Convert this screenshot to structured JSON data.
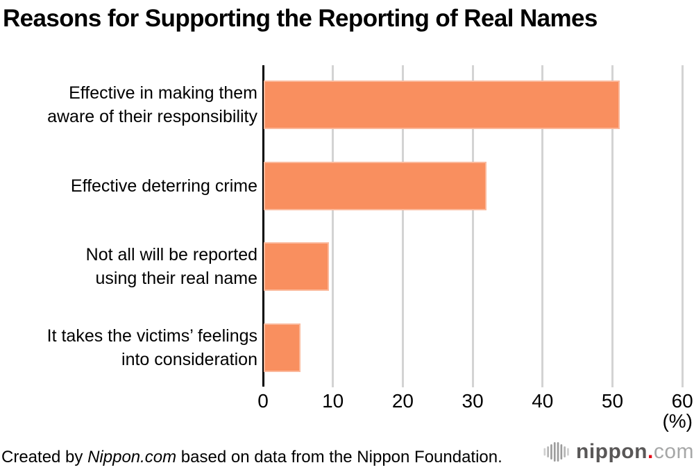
{
  "title": "Reasons for Supporting the Reporting of Real Names",
  "chart_data": {
    "type": "bar",
    "orientation": "horizontal",
    "title": "Reasons for Supporting the Reporting of Real Names",
    "categories": [
      "Effective in making them aware of their responsibility",
      "Effective deterring crime",
      "Not all will be reported using their real name",
      "It takes the victims’ feelings into consideration"
    ],
    "category_lines": [
      [
        "Effective in making them",
        "aware of their responsibility"
      ],
      [
        "Effective deterring crime"
      ],
      [
        "Not all will be reported",
        "using their real name"
      ],
      [
        "It takes the victims’ feelings",
        "into consideration"
      ]
    ],
    "values": [
      50.9,
      31.9,
      9.3,
      5.3
    ],
    "xlabel": "(%)",
    "xticks": [
      0,
      10,
      20,
      30,
      40,
      50,
      60
    ],
    "xlim": [
      0,
      60
    ],
    "grid": true,
    "legend": false,
    "bar_color": "#F98F5F",
    "gridline_color": "#D3D3D3",
    "axis_color": "#000000"
  },
  "footer": {
    "prefix": "Created by ",
    "brand": "Nippon.com",
    "suffix": " based on data from the Nippon Foundation."
  },
  "logo": {
    "name": "nippon",
    "dot": ".",
    "tld": "com",
    "wave_icon": "sound-wave-icon",
    "colors": {
      "name": "#595757",
      "dot": "#E60012",
      "tld": "#A6A7A7",
      "wave_outer": "#CFCFCF",
      "wave_mid": "#B5B5B5",
      "wave_inner": "#9C9C9C"
    }
  }
}
